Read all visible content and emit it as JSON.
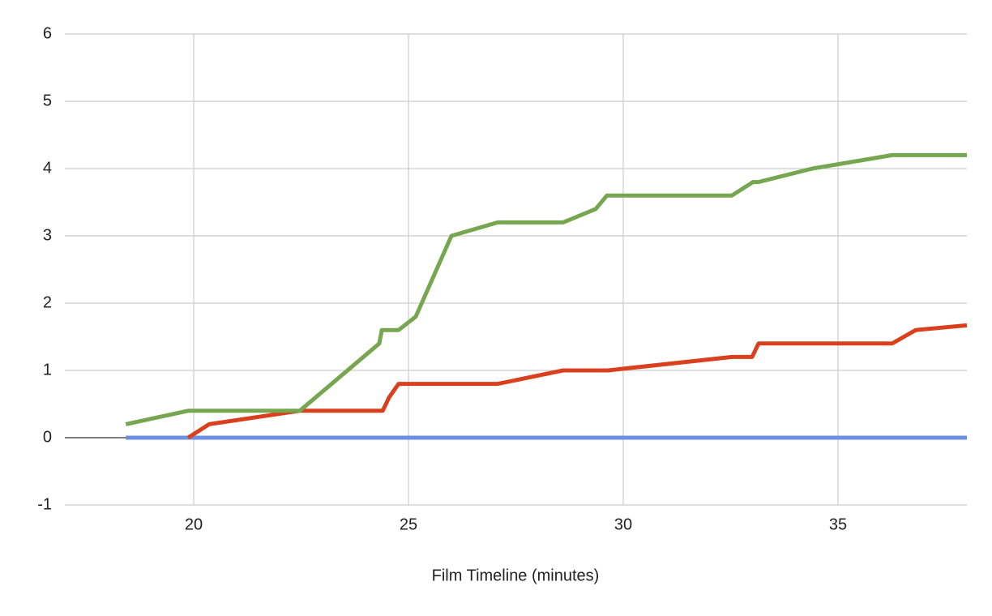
{
  "chart_data": {
    "type": "line",
    "x_label": "Film Timeline (minutes)",
    "xlim": [
      17,
      38
    ],
    "xticks": [
      20,
      25,
      30,
      35
    ],
    "ylim": [
      -1,
      6
    ],
    "yticks": [
      -1,
      0,
      1,
      2,
      3,
      4,
      5,
      6
    ],
    "grid": true,
    "series": [
      {
        "color": "#6d8fe0",
        "x": [
          18.42,
          38
        ],
        "values": [
          0,
          0
        ]
      },
      {
        "color": "#d9411e",
        "x": [
          19.87,
          20.36,
          22.47,
          24.4,
          24.55,
          24.77,
          27.08,
          28.6,
          29.64,
          32.53,
          33.0,
          33.15,
          36.26,
          36.81,
          38.0
        ],
        "values": [
          0,
          0.2,
          0.4,
          0.4,
          0.6,
          0.8,
          0.8,
          1.0,
          1.0,
          1.2,
          1.2,
          1.4,
          1.4,
          1.6,
          1.67
        ]
      },
      {
        "color": "#76a64f",
        "x": [
          18.42,
          19.87,
          22.47,
          24.32,
          24.38,
          24.77,
          25.17,
          26.0,
          27.08,
          28.6,
          29.36,
          29.62,
          32.53,
          33.02,
          33.15,
          34.4,
          36.26,
          38.0
        ],
        "values": [
          0.2,
          0.4,
          0.4,
          1.4,
          1.6,
          1.6,
          1.8,
          3.0,
          3.2,
          3.2,
          3.4,
          3.6,
          3.6,
          3.8,
          3.8,
          4.0,
          4.2,
          4.2
        ]
      }
    ]
  }
}
